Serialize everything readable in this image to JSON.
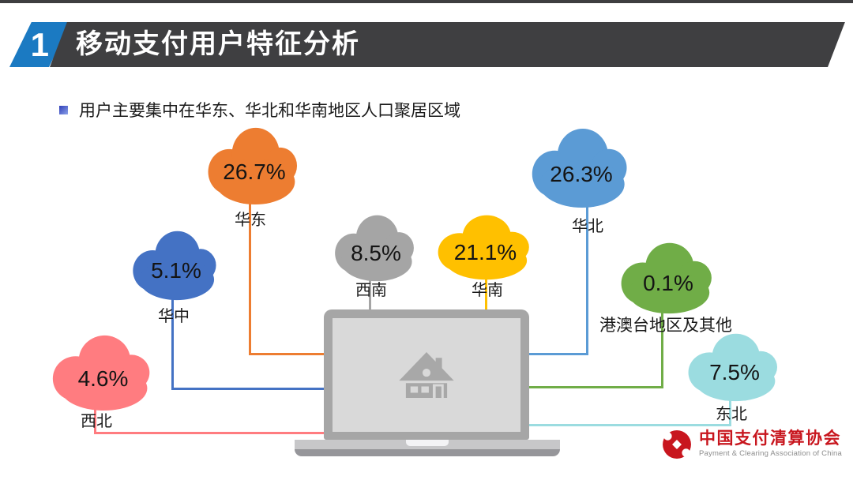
{
  "header": {
    "index": "1",
    "title": "移动支付用户特征分析"
  },
  "bullet": {
    "text": "用户主要集中在华东、华北和华南地区人口聚居区域"
  },
  "chart_data": {
    "type": "diagram",
    "title": "移动支付用户特征分析",
    "subtitle": "用户主要集中在华东、华北和华南地区人口聚居区域",
    "unit": "%",
    "center_icon": "laptop-house",
    "regions": [
      {
        "label": "华东",
        "value": 26.7,
        "value_text": "26.7%",
        "color": "#ED7D31"
      },
      {
        "label": "华北",
        "value": 26.3,
        "value_text": "26.3%",
        "color": "#5B9BD5"
      },
      {
        "label": "华中",
        "value": 5.1,
        "value_text": "5.1%",
        "color": "#4472C4"
      },
      {
        "label": "西南",
        "value": 8.5,
        "value_text": "8.5%",
        "color": "#A5A5A5"
      },
      {
        "label": "华南",
        "value": 21.1,
        "value_text": "21.1%",
        "color": "#FFC000"
      },
      {
        "label": "港澳台地区及其他",
        "value": 0.1,
        "value_text": "0.1%",
        "color": "#70AD47"
      },
      {
        "label": "西北",
        "value": 4.6,
        "value_text": "4.6%",
        "color": "#FF7C80"
      },
      {
        "label": "东北",
        "value": 7.5,
        "value_text": "7.5%",
        "color": "#9BDCE0"
      }
    ]
  },
  "footer": {
    "logo_cn": "中国支付清算协会",
    "logo_en": "Payment & Clearing Association of China"
  }
}
